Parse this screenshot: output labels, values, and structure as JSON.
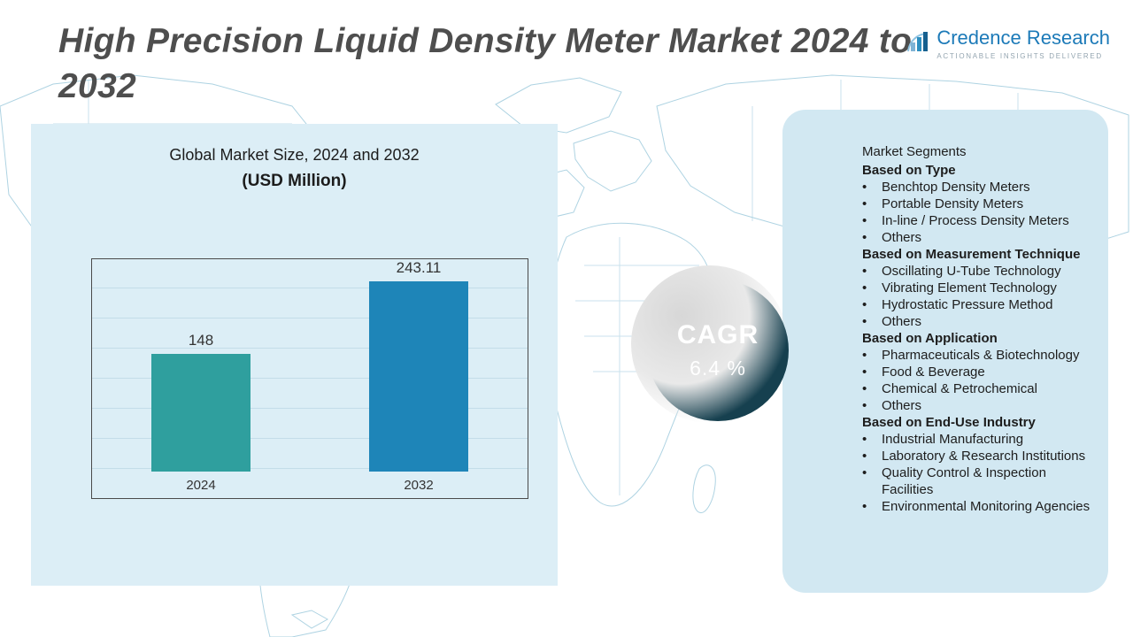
{
  "title": "High Precision Liquid Density Meter Market 2024 to 2032",
  "logo": {
    "name": "Credence Research",
    "tagline": "Actionable Insights Delivered"
  },
  "chart_data": {
    "type": "bar",
    "title": "Global Market Size, 2024 and 2032",
    "subtitle": "(USD Million)",
    "categories": [
      "2024",
      "2032"
    ],
    "values": [
      148,
      243.11
    ],
    "value_labels": [
      "148",
      "243.11"
    ],
    "bar_colors": [
      "#2f9f9e",
      "#1e85b8"
    ],
    "xlabel": "",
    "ylabel": "USD Million",
    "ylim": [
      0,
      270
    ],
    "grid": true,
    "legend_position": "none"
  },
  "cagr": {
    "label": "CAGR",
    "value": "6.4 %"
  },
  "segments": {
    "title": "Market Segments",
    "groups": [
      {
        "heading": "Based on Type",
        "items": [
          "Benchtop Density Meters",
          "Portable Density Meters",
          "In-line / Process  Density Meters",
          "Others"
        ]
      },
      {
        "heading": "Based on Measurement Technique",
        "items": [
          "Oscillating U-Tube Technology",
          "Vibrating Element Technology",
          "Hydrostatic Pressure Method",
          "Others"
        ]
      },
      {
        "heading": "Based on Application",
        "items": [
          "Pharmaceuticals & Biotechnology",
          "Food & Beverage",
          "Chemical & Petrochemical",
          "Others"
        ]
      },
      {
        "heading": "Based on End-Use Industry",
        "items": [
          "Industrial Manufacturing",
          "Laboratory & Research Institutions",
          "Quality Control & Inspection Facilities",
          "Environmental Monitoring Agencies"
        ]
      }
    ]
  }
}
